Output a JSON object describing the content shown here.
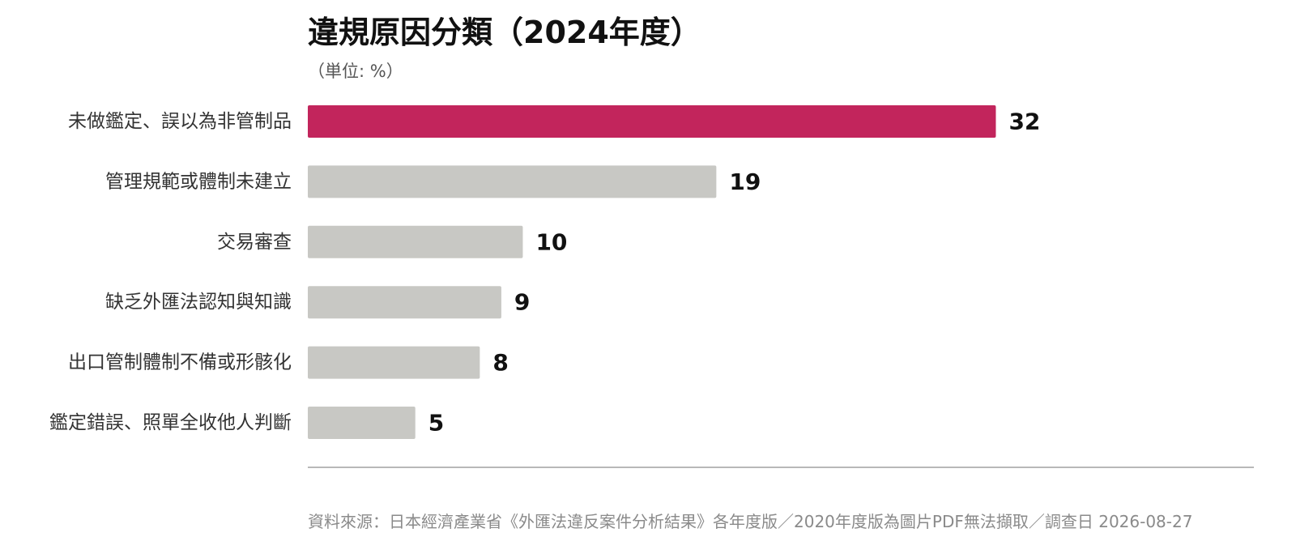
{
  "chart_data": {
    "type": "bar",
    "orientation": "horizontal",
    "title": "違規原因分類（2024年度）",
    "subtitle": "（単位: %）",
    "categories": [
      "未做鑑定、誤以為非管制品",
      "管理規範或體制未建立",
      "交易審查",
      "缺乏外匯法認知與知識",
      "出口管制體制不備或形骸化",
      "鑑定錯誤、照單全收他人判斷"
    ],
    "values": [
      32,
      19,
      10,
      9,
      8,
      5
    ],
    "xlim": [
      0,
      44
    ],
    "grid": false,
    "legend": "none",
    "colors": {
      "highlight": "#c2255c",
      "default": "#c8c8c4",
      "axis": "#a0a0a0"
    }
  },
  "source": "資料來源：日本經濟產業省《外匯法違反案件分析結果》各年度版／2020年度版為圖片PDF無法擷取／調查日 2026-08-27"
}
